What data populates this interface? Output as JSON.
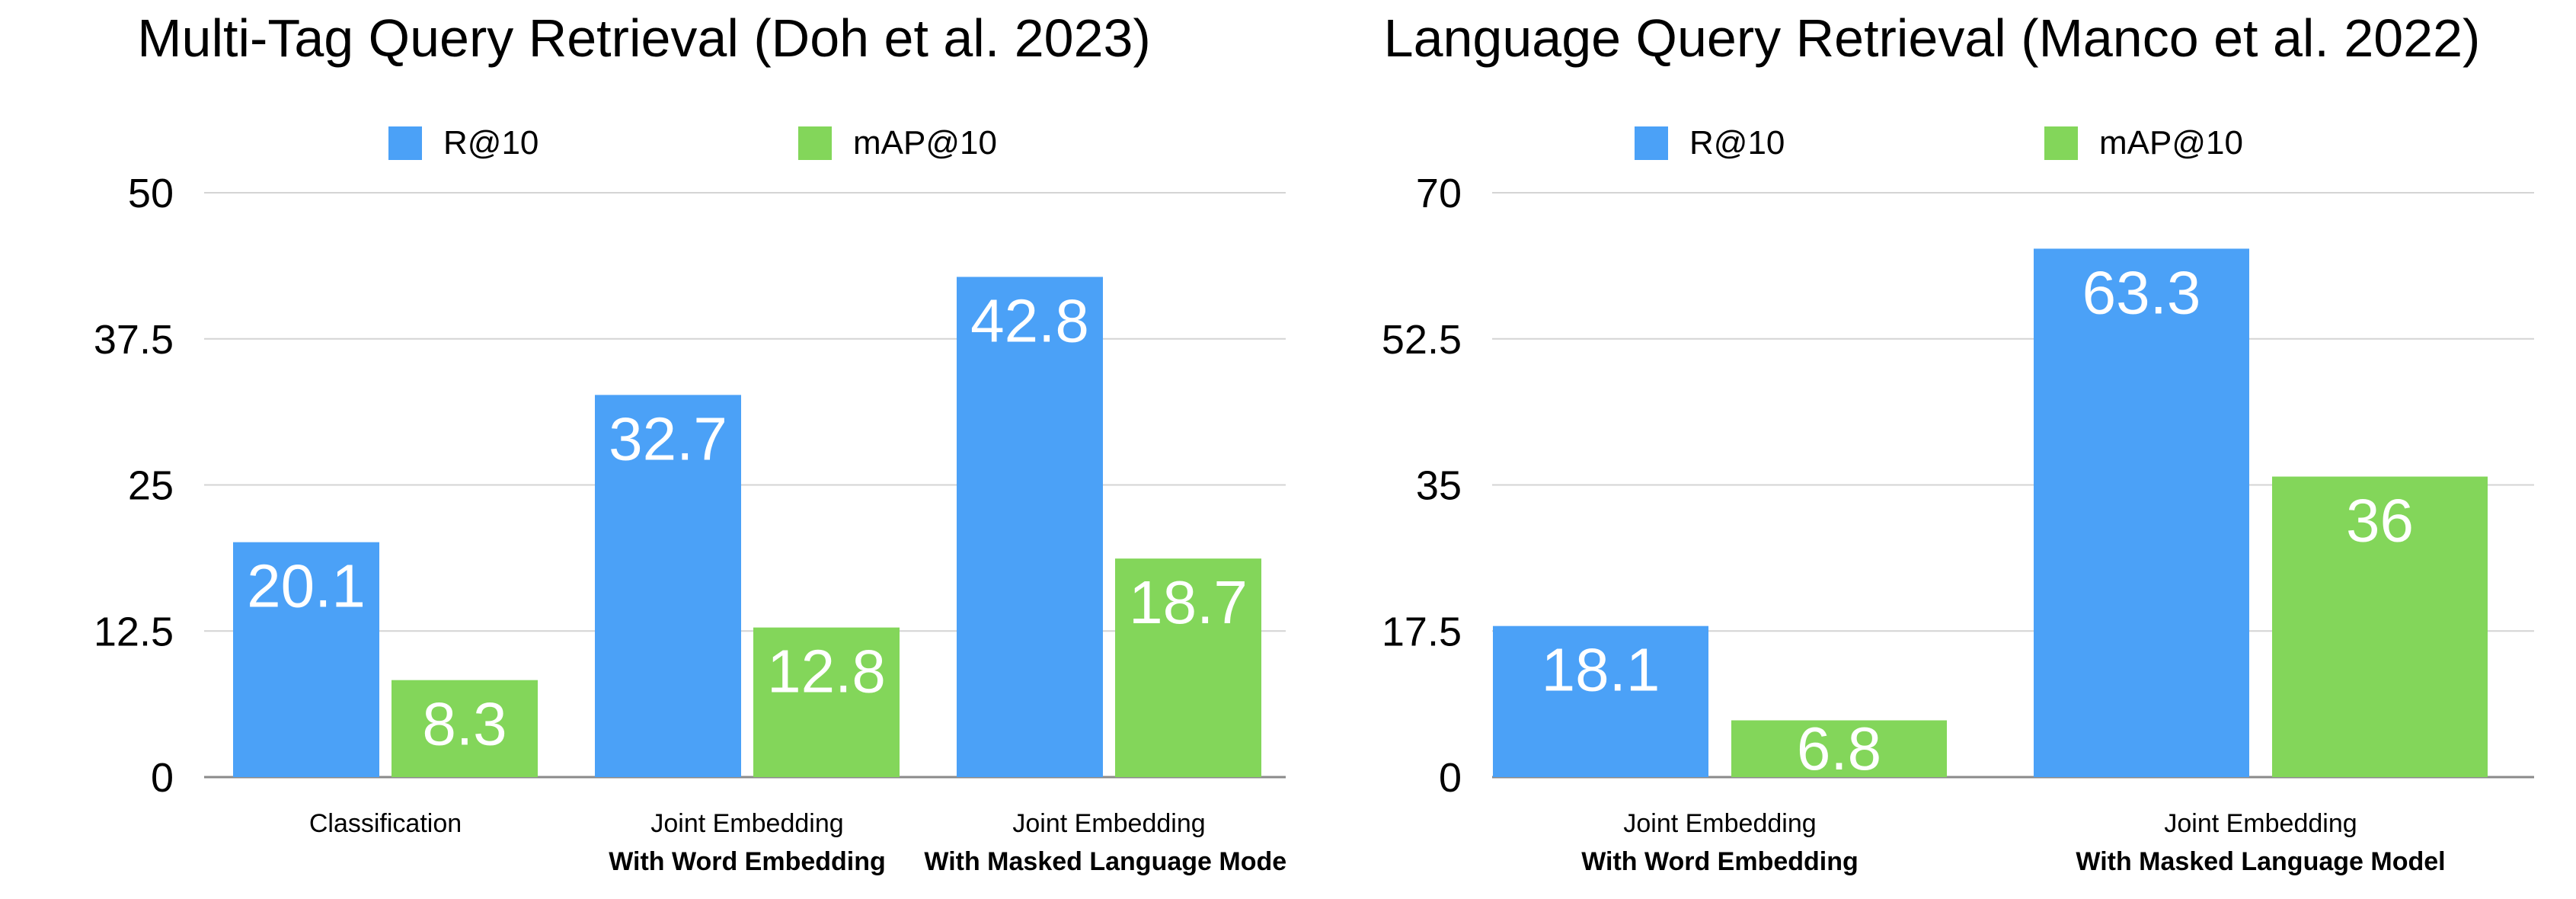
{
  "chart_data": [
    {
      "type": "bar",
      "title": "Multi-Tag Query Retrieval (Doh et al. 2023)",
      "categories": [
        {
          "line1": "Classification",
          "line2": ""
        },
        {
          "line1": "Joint Embedding",
          "line2": "With Word Embedding"
        },
        {
          "line1": "Joint Embedding",
          "line2": "With Masked Language Model"
        }
      ],
      "series": [
        {
          "name": "R@10",
          "color": "#4ba1f7",
          "values": [
            20.1,
            32.7,
            42.8
          ]
        },
        {
          "name": "mAP@10",
          "color": "#83d65a",
          "values": [
            8.3,
            12.8,
            18.7
          ]
        }
      ],
      "ylim": [
        0,
        50
      ],
      "yticks": [
        0,
        12.5,
        25,
        37.5,
        50
      ],
      "xlabel": "",
      "ylabel": "",
      "grid": true,
      "legend_position": "top"
    },
    {
      "type": "bar",
      "title": "Language Query Retrieval (Manco et al. 2022)",
      "categories": [
        {
          "line1": "Joint Embedding",
          "line2": "With Word Embedding"
        },
        {
          "line1": "Joint Embedding",
          "line2": "With Masked Language Model"
        }
      ],
      "series": [
        {
          "name": "R@10",
          "color": "#4ba1f7",
          "values": [
            18.1,
            63.3
          ]
        },
        {
          "name": "mAP@10",
          "color": "#83d65a",
          "values": [
            6.8,
            36
          ]
        }
      ],
      "ylim": [
        0,
        70
      ],
      "yticks": [
        0,
        17.5,
        35,
        52.5,
        70
      ],
      "xlabel": "",
      "ylabel": "",
      "grid": true,
      "legend_position": "top"
    }
  ]
}
